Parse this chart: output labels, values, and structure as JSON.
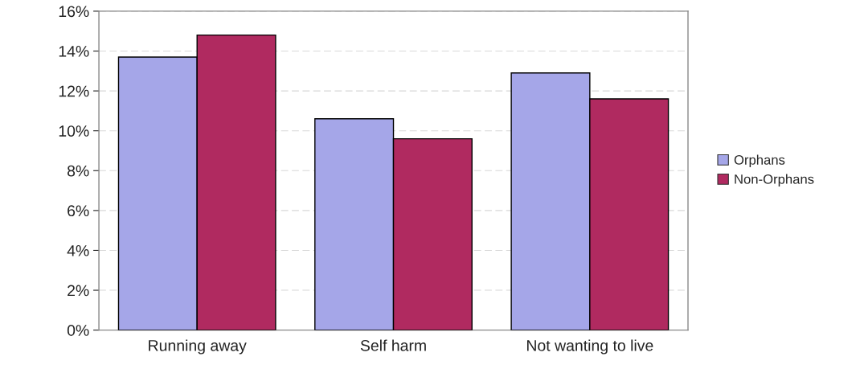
{
  "chart_data": {
    "type": "bar",
    "categories": [
      "Running away",
      "Self harm",
      "Not wanting to live"
    ],
    "series": [
      {
        "name": "Orphans",
        "color": "#a5a6e8",
        "values": [
          13.7,
          10.6,
          12.9
        ]
      },
      {
        "name": "Non-Orphans",
        "color": "#b02a60",
        "values": [
          14.8,
          9.6,
          11.6
        ]
      }
    ],
    "ylim": [
      0,
      16
    ],
    "yticks": [
      {
        "value": 0,
        "label": "0%"
      },
      {
        "value": 2,
        "label": "2%"
      },
      {
        "value": 4,
        "label": "4%"
      },
      {
        "value": 6,
        "label": "6%"
      },
      {
        "value": 8,
        "label": "8%"
      },
      {
        "value": 10,
        "label": "10%"
      },
      {
        "value": 12,
        "label": "12%"
      },
      {
        "value": 14,
        "label": "14%"
      },
      {
        "value": 16,
        "label": "16%"
      }
    ],
    "grid": "y",
    "legend": "right"
  }
}
